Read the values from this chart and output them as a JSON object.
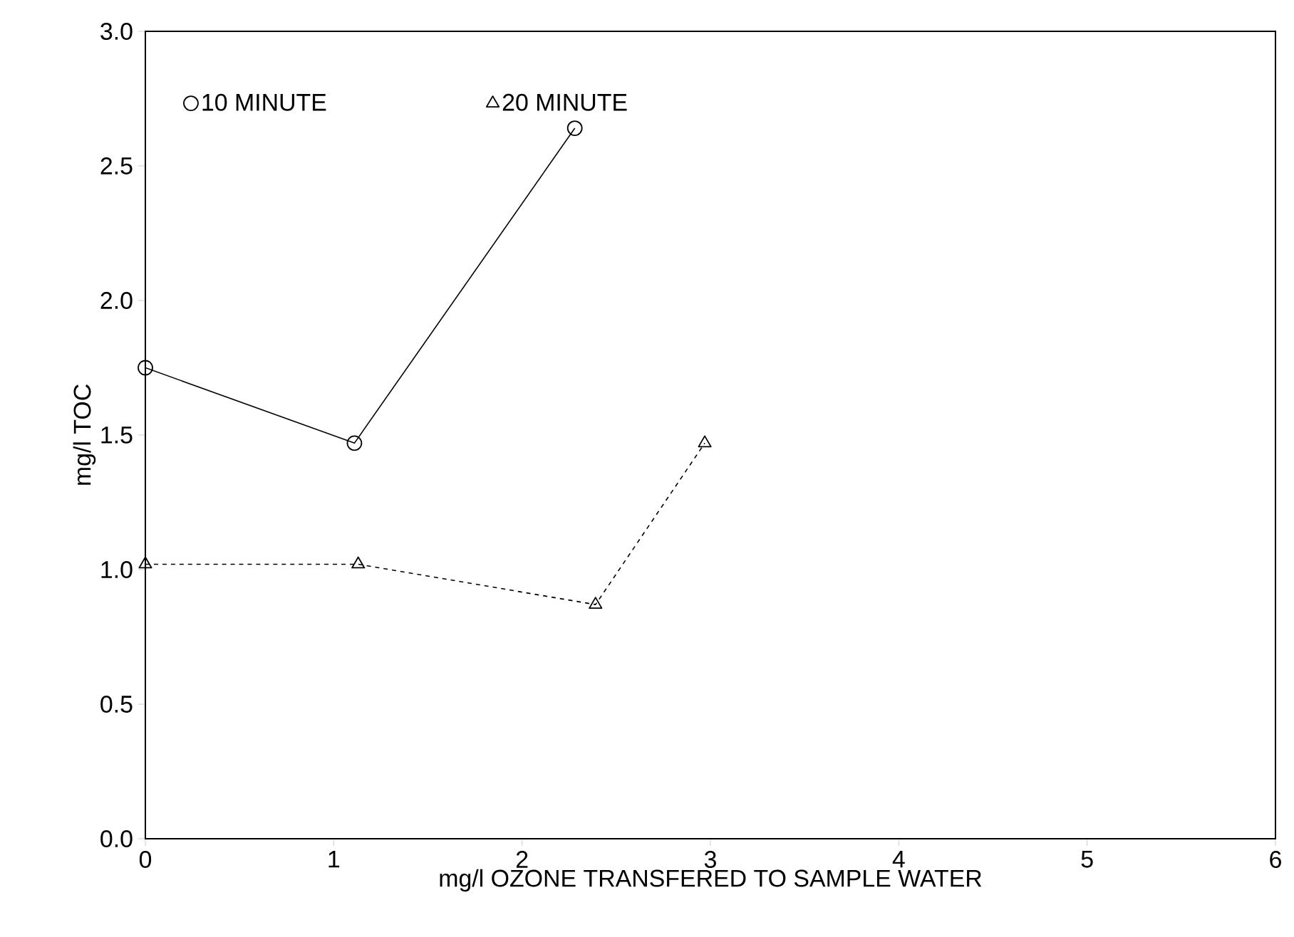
{
  "chart_data": {
    "type": "line",
    "xlabel": "mg/l OZONE TRANSFERED TO SAMPLE WATER",
    "ylabel": "mg/l TOC",
    "xlim": [
      0,
      6
    ],
    "xticks": [
      0,
      1,
      2,
      3,
      4,
      5,
      6
    ],
    "ylim": [
      0,
      3.0
    ],
    "yticks": [
      {
        "value": 0,
        "label": "0.0"
      },
      0.5,
      {
        "value": 1,
        "label": "1.0"
      },
      1.5,
      {
        "value": 2,
        "label": "2.0"
      },
      2.5,
      {
        "value": 3,
        "label": "3.0"
      }
    ],
    "grid": false,
    "legend": "top left",
    "series": [
      {
        "name": "10 MINUTE",
        "color": "#000000",
        "marker": "circle",
        "line_style": "solid",
        "x": [
          0,
          1.11,
          2.28
        ],
        "values": [
          1.75,
          1.47,
          2.64
        ]
      },
      {
        "name": "20 MINUTE",
        "color": "#000000",
        "marker": "triangle",
        "line_style": "dashed",
        "x": [
          0,
          1.13,
          2.39,
          2.97
        ],
        "values": [
          1.02,
          1.02,
          0.87,
          1.47
        ]
      }
    ]
  }
}
